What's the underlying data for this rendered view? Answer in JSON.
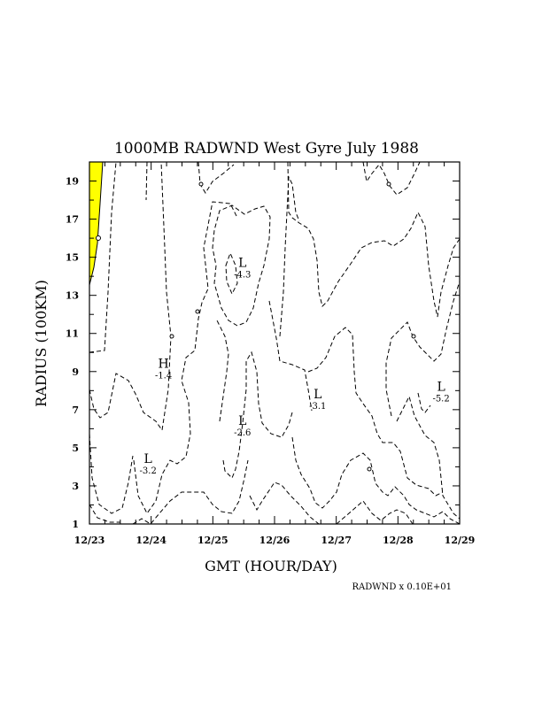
{
  "chart_data": {
    "type": "contour",
    "title": "1000MB RADWND West Gyre July 1988",
    "xlabel": "GMT (HOUR/DAY)",
    "ylabel": "RADIUS (100KM)",
    "x_ticks": [
      "12/23",
      "12/24",
      "12/25",
      "12/26",
      "12/27",
      "12/28",
      "12/29"
    ],
    "y_ticks": [
      "1",
      "3",
      "5",
      "7",
      "9",
      "11",
      "13",
      "15",
      "17",
      "19"
    ],
    "xlim": [
      0,
      6
    ],
    "ylim": [
      1,
      20
    ],
    "footer": "RADWND x  0.10E+01",
    "extrema": [
      {
        "label": "L",
        "value": "-4.3",
        "x": 2.48,
        "y": 14.5
      },
      {
        "label": "H",
        "value": "-1.4",
        "x": 1.2,
        "y": 9.2
      },
      {
        "label": "L",
        "value": "-2.6",
        "x": 2.48,
        "y": 6.2
      },
      {
        "label": "L",
        "value": "-3.1",
        "x": 3.7,
        "y": 7.6
      },
      {
        "label": "L",
        "value": "-5.2",
        "x": 5.7,
        "y": 8.0
      },
      {
        "label": "L",
        "value": "-3.2",
        "x": 0.95,
        "y": 4.2
      }
    ],
    "highlight": {
      "color": "#ffff00",
      "description": "positive region"
    }
  }
}
